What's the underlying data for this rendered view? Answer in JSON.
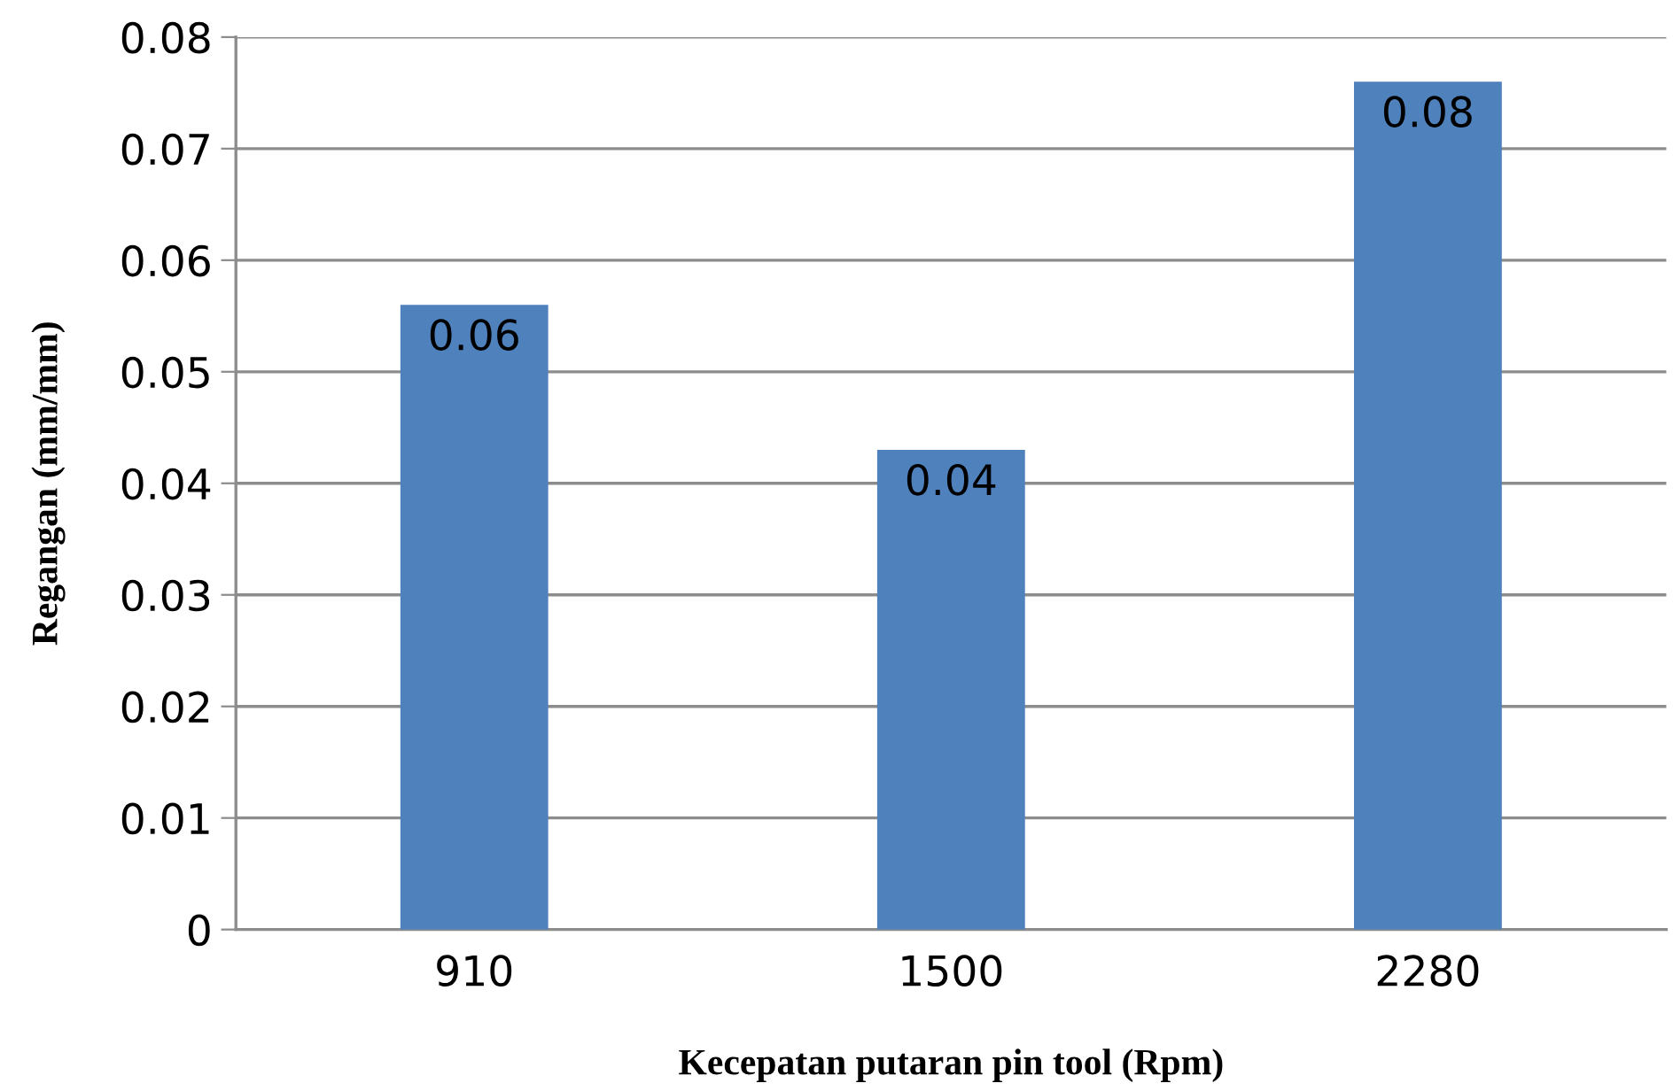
{
  "chart_data": {
    "type": "bar",
    "xlabel": "Kecepatan putaran pin tool (Rpm)",
    "ylabel": "Regangan (mm/mm)",
    "categories": [
      "910",
      "1500",
      "2280"
    ],
    "values": [
      0.056,
      0.043,
      0.076
    ],
    "value_labels": [
      "0.06",
      "0.04",
      "0.08"
    ],
    "color": "#4f81bd",
    "ylim": [
      0,
      0.08
    ],
    "yticks": [
      0,
      0.01,
      0.02,
      0.03,
      0.04,
      0.05,
      0.06,
      0.07,
      0.08
    ],
    "grid": "y",
    "legend": false
  }
}
